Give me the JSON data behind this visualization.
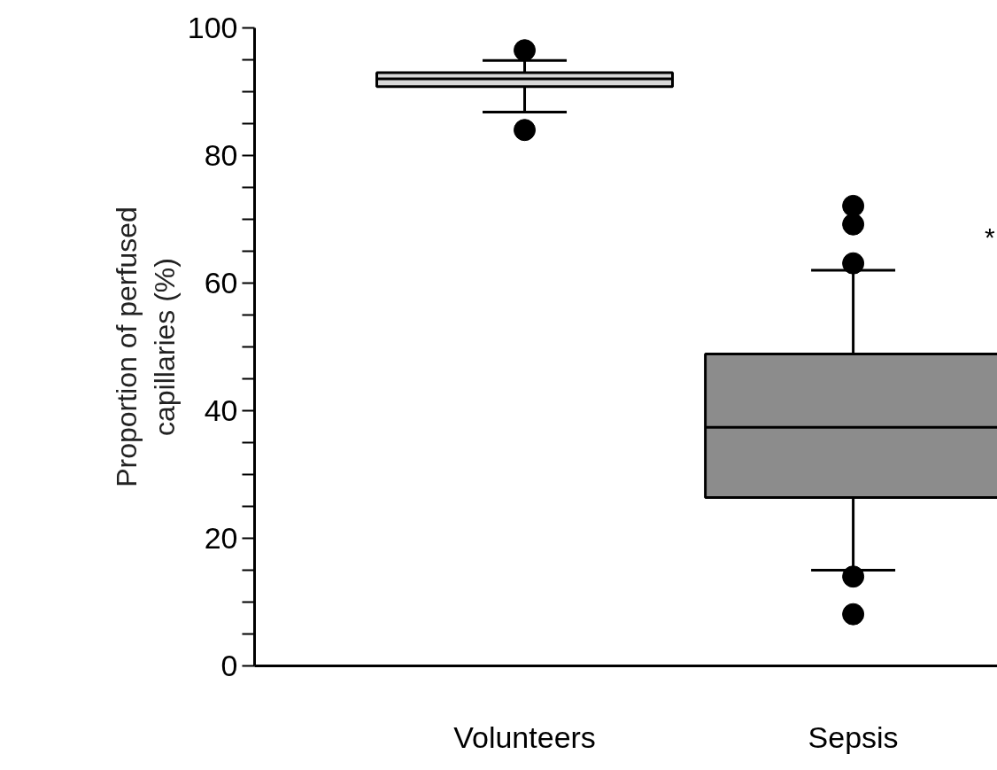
{
  "chart_data": {
    "type": "box",
    "ylabel": "Proportion of perfused capillaries (%)",
    "categories": [
      "Volunteers",
      "Sepsis"
    ],
    "colors": [
      "#d8d8d8",
      "#8c8c8c"
    ],
    "boxes": [
      {
        "low": 86.8,
        "q1": 90.8,
        "median": 92,
        "q3": 93,
        "high": 94.9,
        "outliers": [
          96.5,
          84
        ]
      },
      {
        "low": 15,
        "q1": 26.4,
        "median": 37.4,
        "q3": 48.9,
        "high": 62,
        "outliers": [
          72.1,
          69.2,
          63.1,
          14,
          8.1
        ]
      }
    ],
    "ylim": [
      0,
      100
    ],
    "yticks": [
      0,
      {
        "value": 5,
        "label": null
      },
      {
        "value": 10,
        "label": null
      },
      {
        "value": 15,
        "label": null
      },
      20,
      {
        "value": 25,
        "label": null
      },
      {
        "value": 30,
        "label": null
      },
      {
        "value": 35,
        "label": null
      },
      40,
      {
        "value": 45,
        "label": null
      },
      {
        "value": 50,
        "label": null
      },
      {
        "value": 55,
        "label": null
      },
      60,
      {
        "value": 65,
        "label": null
      },
      {
        "value": 70,
        "label": null
      },
      {
        "value": 75,
        "label": null
      },
      80,
      {
        "value": 85,
        "label": null
      },
      {
        "value": 90,
        "label": null
      },
      {
        "value": 95,
        "label": null
      },
      100
    ],
    "annotations": [
      "*"
    ],
    "grid": false
  }
}
